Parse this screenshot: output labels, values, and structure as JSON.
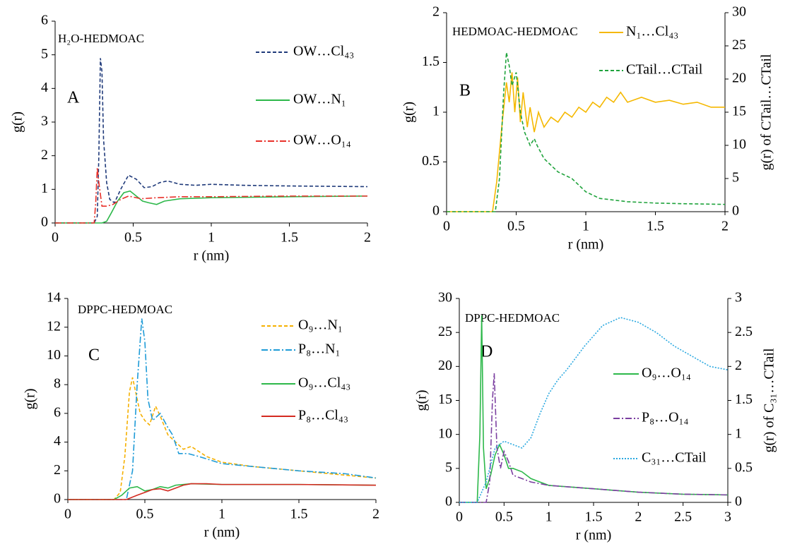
{
  "chart_data": [
    {
      "type": "line",
      "subtitle": "H₂O-HEDMOAC",
      "label": "A",
      "x_label": "r (nm)",
      "y_label": "g(r)",
      "xlim": [
        0,
        2
      ],
      "xticks": [
        0,
        0.5,
        1,
        1.5,
        2
      ],
      "ylim": [
        0,
        6
      ],
      "yticks": [
        0,
        1,
        2,
        3,
        4,
        5,
        6
      ],
      "series": [
        {
          "name": "OW…Cl₄₃",
          "color": "#1f3a7a",
          "dash": "dashed",
          "x": [
            0,
            0.25,
            0.27,
            0.28,
            0.29,
            0.3,
            0.31,
            0.33,
            0.35,
            0.38,
            0.42,
            0.47,
            0.52,
            0.57,
            0.62,
            0.67,
            0.72,
            0.8,
            0.9,
            1,
            1.2,
            1.5,
            2
          ],
          "values": [
            0,
            0,
            0.2,
            2,
            4.9,
            4.5,
            2.5,
            1.2,
            0.7,
            0.6,
            1,
            1.42,
            1.3,
            1.05,
            1.08,
            1.2,
            1.25,
            1.15,
            1.12,
            1.15,
            1.12,
            1.1,
            1.08
          ]
        },
        {
          "name": "OW…N₁",
          "color": "#2db84a",
          "dash": "solid",
          "x": [
            0,
            0.3,
            0.33,
            0.36,
            0.4,
            0.44,
            0.48,
            0.52,
            0.56,
            0.6,
            0.65,
            0.7,
            0.8,
            1,
            1.5,
            2
          ],
          "values": [
            0,
            0,
            0.05,
            0.3,
            0.65,
            0.9,
            0.95,
            0.8,
            0.65,
            0.6,
            0.55,
            0.65,
            0.72,
            0.75,
            0.78,
            0.8
          ]
        },
        {
          "name": "OW…O₁₄",
          "color": "#e8312a",
          "dash": "dashdot",
          "x": [
            0,
            0.25,
            0.26,
            0.27,
            0.28,
            0.3,
            0.33,
            0.37,
            0.42,
            0.47,
            0.55,
            0.65,
            0.8,
            1,
            1.5,
            2
          ],
          "values": [
            0,
            0,
            0.6,
            1.65,
            1.2,
            0.5,
            0.5,
            0.55,
            0.7,
            0.8,
            0.72,
            0.75,
            0.78,
            0.78,
            0.8,
            0.8
          ]
        }
      ]
    },
    {
      "type": "line",
      "subtitle": "HEDMOAC-HEDMOAC",
      "label": "B",
      "x_label": "r (nm)",
      "y_label": "g(r)",
      "y2_label": "g(r) of CTail…CTail",
      "xlim": [
        0,
        2
      ],
      "xticks": [
        0,
        0.5,
        1,
        1.5,
        2
      ],
      "ylim": [
        0,
        2
      ],
      "yticks": [
        0,
        0.5,
        1,
        1.5,
        2
      ],
      "y2lim": [
        0,
        30
      ],
      "y2ticks": [
        0,
        5,
        10,
        15,
        20,
        25,
        30
      ],
      "series": [
        {
          "name": "N₁…Cl₄₃",
          "color": "#f5b800",
          "dash": "solid",
          "x": [
            0,
            0.33,
            0.36,
            0.4,
            0.43,
            0.45,
            0.47,
            0.49,
            0.51,
            0.53,
            0.55,
            0.58,
            0.6,
            0.63,
            0.66,
            0.7,
            0.75,
            0.8,
            0.85,
            0.9,
            0.95,
            1,
            1.05,
            1.1,
            1.15,
            1.2,
            1.25,
            1.3,
            1.4,
            1.5,
            1.6,
            1.7,
            1.8,
            1.9,
            2
          ],
          "values": [
            0,
            0,
            0.3,
            0.9,
            1.3,
            1.1,
            1.4,
            1.0,
            1.35,
            0.9,
            1.2,
            0.85,
            1.05,
            0.8,
            1.0,
            0.85,
            0.95,
            0.9,
            1.0,
            0.95,
            1.05,
            1.0,
            1.1,
            1.05,
            1.15,
            1.1,
            1.2,
            1.1,
            1.15,
            1.1,
            1.12,
            1.08,
            1.1,
            1.05,
            1.05
          ]
        },
        {
          "name": "CTail…CTail",
          "color": "#1fa33c",
          "dash": "dashed",
          "axis": "y2",
          "x": [
            0,
            0.35,
            0.38,
            0.41,
            0.43,
            0.45,
            0.47,
            0.5,
            0.53,
            0.56,
            0.6,
            0.63,
            0.65,
            0.7,
            0.8,
            0.9,
            1,
            1.1,
            1.3,
            1.5,
            1.7,
            2
          ],
          "values": [
            0,
            0,
            5,
            18,
            24,
            22,
            19,
            21,
            15,
            12,
            10,
            11,
            10,
            8,
            6,
            5,
            3,
            2,
            1.5,
            1.3,
            1.2,
            1.1
          ]
        }
      ]
    },
    {
      "type": "line",
      "subtitle": "DPPC-HEDMOAC",
      "label": "C",
      "x_label": "r (nm)",
      "y_label": "g(r)",
      "xlim": [
        0,
        2
      ],
      "xticks": [
        0,
        0.5,
        1,
        1.5,
        2
      ],
      "ylim": [
        0,
        14
      ],
      "yticks": [
        0,
        2,
        4,
        6,
        8,
        10,
        12,
        14
      ],
      "series": [
        {
          "name": "O₉…N₁",
          "color": "#f5b000",
          "dash": "dashed",
          "x": [
            0,
            0.3,
            0.34,
            0.37,
            0.4,
            0.42,
            0.44,
            0.47,
            0.5,
            0.53,
            0.57,
            0.6,
            0.65,
            0.7,
            0.75,
            0.8,
            0.9,
            1,
            1.2,
            1.5,
            1.8,
            2
          ],
          "values": [
            0,
            0,
            0.5,
            3,
            7.5,
            8.5,
            7.5,
            6,
            5.5,
            5.2,
            6.5,
            5.8,
            4.5,
            4,
            3.5,
            3.7,
            3,
            2.6,
            2.3,
            2,
            1.7,
            1.5
          ]
        },
        {
          "name": "P₈…N₁",
          "color": "#1e9bd7",
          "dash": "dashdot",
          "x": [
            0,
            0.38,
            0.42,
            0.45,
            0.48,
            0.5,
            0.52,
            0.55,
            0.6,
            0.65,
            0.68,
            0.72,
            0.78,
            0.85,
            1,
            1.2,
            1.5,
            1.8,
            2
          ],
          "values": [
            0,
            0,
            2,
            8,
            12.6,
            11,
            7,
            5.5,
            6,
            5,
            4.5,
            3.2,
            3.2,
            3,
            2.5,
            2.3,
            2,
            1.8,
            1.5
          ]
        },
        {
          "name": "O₉…Cl₄₃",
          "color": "#2db84a",
          "dash": "solid",
          "x": [
            0,
            0.3,
            0.35,
            0.4,
            0.45,
            0.5,
            0.55,
            0.6,
            0.65,
            0.7,
            0.8,
            1,
            1.5,
            2
          ],
          "values": [
            0,
            0,
            0.3,
            0.8,
            0.9,
            0.6,
            0.7,
            0.9,
            0.8,
            1.0,
            1.1,
            1.05,
            1.05,
            1.0
          ]
        },
        {
          "name": "P₈…Cl₄₃",
          "color": "#d42a20",
          "dash": "solid",
          "x": [
            0,
            0.38,
            0.45,
            0.5,
            0.55,
            0.6,
            0.65,
            0.7,
            0.75,
            0.8,
            0.9,
            1,
            1.5,
            2
          ],
          "values": [
            0,
            0,
            0.3,
            0.5,
            0.7,
            0.75,
            0.6,
            0.8,
            1.0,
            1.1,
            1.1,
            1.05,
            1.05,
            1.0
          ]
        }
      ]
    },
    {
      "type": "line",
      "subtitle": "DPPC-HEDMOAC",
      "label": "D",
      "x_label": "r (nm)",
      "y_label": "g(r)",
      "y2_label": "g(r) of C₃₁…CTail",
      "xlim": [
        0,
        3
      ],
      "xticks": [
        0,
        0.5,
        1,
        1.5,
        2,
        2.5,
        3
      ],
      "ylim": [
        0,
        30
      ],
      "yticks": [
        0,
        5,
        10,
        15,
        20,
        25,
        30
      ],
      "y2lim": [
        0,
        3
      ],
      "y2ticks": [
        0,
        0.5,
        1,
        1.5,
        2,
        2.5,
        3
      ],
      "series": [
        {
          "name": "O₉…O₁₄",
          "color": "#2db84a",
          "dash": "solid",
          "x": [
            0,
            0.2,
            0.23,
            0.25,
            0.27,
            0.3,
            0.35,
            0.4,
            0.45,
            0.5,
            0.55,
            0.6,
            0.7,
            0.8,
            1,
            1.5,
            2,
            2.5,
            3
          ],
          "values": [
            0,
            0,
            10,
            27.5,
            8,
            2,
            4,
            7,
            8.5,
            7,
            5,
            5,
            4.5,
            3.5,
            2.5,
            2,
            1.5,
            1.2,
            1.1
          ]
        },
        {
          "name": "P₈…O₁₄",
          "color": "#7b3fa0",
          "dash": "dashdot",
          "x": [
            0,
            0.3,
            0.34,
            0.37,
            0.39,
            0.42,
            0.46,
            0.5,
            0.55,
            0.6,
            0.7,
            0.8,
            1,
            1.5,
            2,
            2.5,
            3
          ],
          "values": [
            0,
            0,
            3,
            15,
            19,
            8,
            5,
            7.5,
            6,
            4,
            3.5,
            3,
            2.5,
            2,
            1.5,
            1.2,
            1.1
          ]
        },
        {
          "name": "C₃₁…CTail",
          "color": "#29a8e0",
          "dash": "dotted",
          "axis": "y2",
          "x": [
            0,
            0.2,
            0.3,
            0.4,
            0.5,
            0.6,
            0.7,
            0.8,
            0.9,
            1,
            1.1,
            1.2,
            1.4,
            1.6,
            1.8,
            2,
            2.2,
            2.4,
            2.6,
            2.8,
            3
          ],
          "values": [
            0,
            0,
            0.3,
            0.8,
            0.9,
            0.85,
            0.8,
            0.95,
            1.3,
            1.6,
            1.8,
            1.95,
            2.3,
            2.6,
            2.72,
            2.65,
            2.5,
            2.3,
            2.15,
            2.0,
            1.95
          ]
        }
      ]
    }
  ]
}
